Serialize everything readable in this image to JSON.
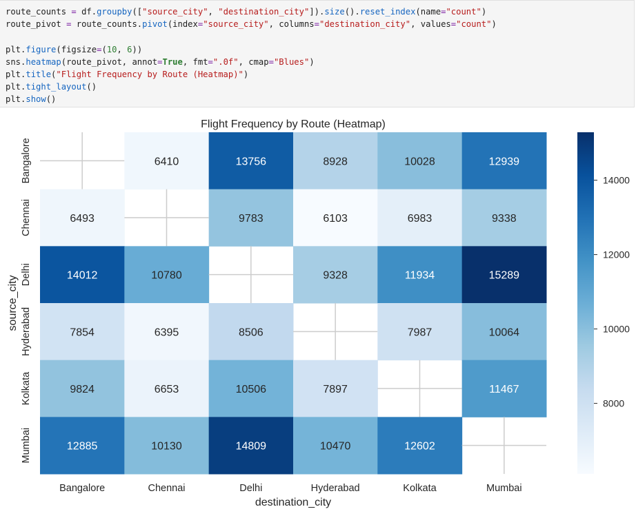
{
  "code": {
    "lines": [
      [
        [
          "v",
          "route_counts "
        ],
        [
          "o",
          "="
        ],
        [
          "v",
          " df."
        ],
        [
          "a",
          "groupby"
        ],
        [
          "v",
          "(["
        ],
        [
          "s",
          "\"source_city\""
        ],
        [
          "v",
          ", "
        ],
        [
          "s",
          "\"destination_city\""
        ],
        [
          "v",
          "])."
        ],
        [
          "a",
          "size"
        ],
        [
          "v",
          "()."
        ],
        [
          "a",
          "reset_index"
        ],
        [
          "v",
          "(name"
        ],
        [
          "o",
          "="
        ],
        [
          "s",
          "\"count\""
        ],
        [
          "v",
          ")"
        ]
      ],
      [
        [
          "v",
          "route_pivot "
        ],
        [
          "o",
          "="
        ],
        [
          "v",
          " route_counts."
        ],
        [
          "a",
          "pivot"
        ],
        [
          "v",
          "(index"
        ],
        [
          "o",
          "="
        ],
        [
          "s",
          "\"source_city\""
        ],
        [
          "v",
          ", columns"
        ],
        [
          "o",
          "="
        ],
        [
          "s",
          "\"destination_city\""
        ],
        [
          "v",
          ", values"
        ],
        [
          "o",
          "="
        ],
        [
          "s",
          "\"count\""
        ],
        [
          "v",
          ")"
        ]
      ],
      [],
      [
        [
          "v",
          "plt."
        ],
        [
          "a",
          "figure"
        ],
        [
          "v",
          "(figsize"
        ],
        [
          "o",
          "="
        ],
        [
          "v",
          "("
        ],
        [
          "n",
          "10"
        ],
        [
          "v",
          ", "
        ],
        [
          "n",
          "6"
        ],
        [
          "v",
          "))"
        ]
      ],
      [
        [
          "v",
          "sns."
        ],
        [
          "a",
          "heatmap"
        ],
        [
          "v",
          "(route_pivot, annot"
        ],
        [
          "o",
          "="
        ],
        [
          "k",
          "True"
        ],
        [
          "v",
          ", fmt"
        ],
        [
          "o",
          "="
        ],
        [
          "s",
          "\".0f\""
        ],
        [
          "v",
          ", cmap"
        ],
        [
          "o",
          "="
        ],
        [
          "s",
          "\"Blues\""
        ],
        [
          "v",
          ")"
        ]
      ],
      [
        [
          "v",
          "plt."
        ],
        [
          "a",
          "title"
        ],
        [
          "v",
          "("
        ],
        [
          "s",
          "\"Flight Frequency by Route (Heatmap)\""
        ],
        [
          "v",
          ")"
        ]
      ],
      [
        [
          "v",
          "plt."
        ],
        [
          "a",
          "tight_layout"
        ],
        [
          "v",
          "()"
        ]
      ],
      [
        [
          "v",
          "plt."
        ],
        [
          "a",
          "show"
        ],
        [
          "v",
          "()"
        ]
      ]
    ]
  },
  "chart_data": {
    "type": "heatmap",
    "title": "Flight Frequency by Route (Heatmap)",
    "xlabel": "destination_city",
    "ylabel": "source_city",
    "cmap": "Blues",
    "x_categories": [
      "Bangalore",
      "Chennai",
      "Delhi",
      "Hyderabad",
      "Kolkata",
      "Mumbai"
    ],
    "y_categories": [
      "Bangalore",
      "Chennai",
      "Delhi",
      "Hyderabad",
      "Kolkata",
      "Mumbai"
    ],
    "values": [
      [
        null,
        6410,
        13756,
        8928,
        10028,
        12939
      ],
      [
        6493,
        null,
        9783,
        6103,
        6983,
        9338
      ],
      [
        14012,
        10780,
        null,
        9328,
        11934,
        15289
      ],
      [
        7854,
        6395,
        8506,
        null,
        7987,
        10064
      ],
      [
        9824,
        6653,
        10506,
        7897,
        null,
        11467
      ],
      [
        12885,
        10130,
        14809,
        10470,
        12602,
        null
      ]
    ],
    "vmin": 6103,
    "vmax": 15289,
    "colorbar_ticks": [
      8000,
      10000,
      12000,
      14000
    ],
    "colorbar_tick_labels": [
      "8000",
      "10000",
      "12000",
      "14000"
    ]
  }
}
